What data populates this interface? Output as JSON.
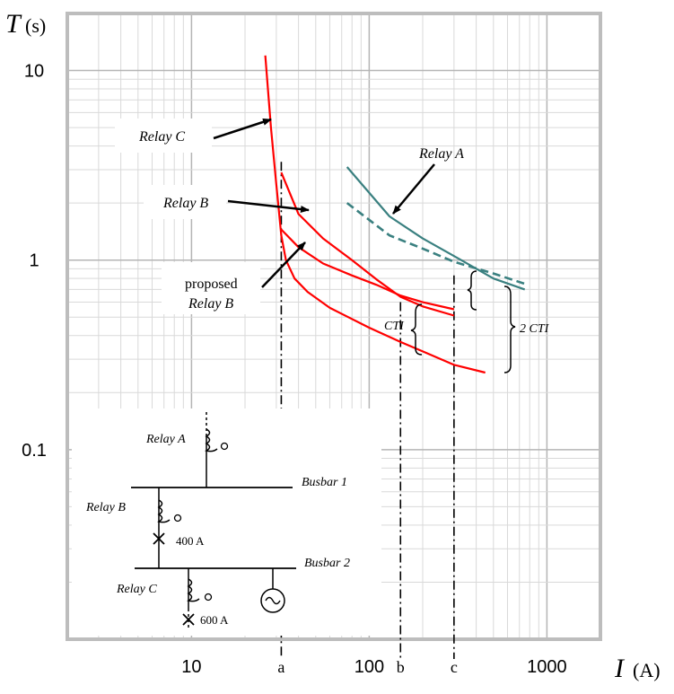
{
  "chart_data": {
    "type": "line",
    "scale": "log-log",
    "grid": true,
    "xlabel": {
      "symbol": "I",
      "unit": "(A)"
    },
    "ylabel": {
      "symbol": "T",
      "unit": "(s)"
    },
    "xlim": [
      2,
      2000
    ],
    "ylim": [
      0.01,
      20
    ],
    "x_ticks": [
      {
        "value": 10,
        "label": "10"
      },
      {
        "value": 100,
        "label": "100"
      },
      {
        "value": 1000,
        "label": "1000"
      }
    ],
    "y_ticks": [
      {
        "value": 10,
        "label": "10"
      },
      {
        "value": 1,
        "label": "1"
      },
      {
        "value": 0.1,
        "label": "0.1"
      }
    ],
    "markers": [
      {
        "label": "a",
        "x": 32,
        "y_top": 3.3
      },
      {
        "label": "b",
        "x": 150,
        "y_top": 0.6
      },
      {
        "label": "c",
        "x": 300,
        "y_top": 0.83
      }
    ],
    "series": [
      {
        "name": "Relay C",
        "color": "#ff0000",
        "style": "solid",
        "points": [
          [
            26,
            12
          ],
          [
            28,
            5
          ],
          [
            30,
            2.5
          ],
          [
            32,
            1.35
          ],
          [
            34,
            1.0
          ],
          [
            38,
            0.8
          ],
          [
            45,
            0.68
          ],
          [
            60,
            0.56
          ],
          [
            100,
            0.44
          ],
          [
            150,
            0.37
          ],
          [
            200,
            0.33
          ],
          [
            300,
            0.28
          ],
          [
            450,
            0.255
          ]
        ]
      },
      {
        "name": "Relay B",
        "color": "#ff0000",
        "style": "solid",
        "points": [
          [
            32,
            2.9
          ],
          [
            40,
            1.75
          ],
          [
            55,
            1.3
          ],
          [
            80,
            1.0
          ],
          [
            110,
            0.79
          ],
          [
            150,
            0.64
          ],
          [
            200,
            0.57
          ],
          [
            300,
            0.51
          ]
        ]
      },
      {
        "name": "proposed Relay B",
        "color": "#ff0000",
        "style": "solid",
        "points": [
          [
            32,
            1.45
          ],
          [
            40,
            1.17
          ],
          [
            55,
            0.96
          ],
          [
            80,
            0.83
          ],
          [
            110,
            0.74
          ],
          [
            150,
            0.65
          ],
          [
            200,
            0.6
          ],
          [
            300,
            0.55
          ]
        ]
      },
      {
        "name": "Relay A",
        "color": "#3a8080",
        "style": "solid",
        "points": [
          [
            75,
            3.1
          ],
          [
            130,
            1.7
          ],
          [
            200,
            1.3
          ],
          [
            300,
            1.05
          ],
          [
            500,
            0.8
          ],
          [
            750,
            0.7
          ]
        ]
      },
      {
        "color": "#3a8080",
        "style": "dashed",
        "points": [
          [
            75,
            2.0
          ],
          [
            130,
            1.35
          ],
          [
            200,
            1.15
          ],
          [
            300,
            0.98
          ],
          [
            500,
            0.85
          ],
          [
            750,
            0.75
          ]
        ]
      }
    ],
    "annotations": {
      "relay_c": "Relay C",
      "relay_b": "Relay B",
      "proposed_1": "proposed",
      "proposed_2": "Relay B",
      "relay_a": "Relay A",
      "cti": "CTI",
      "cti2": "2 CTI"
    },
    "inset": {
      "relay_a": "Relay A",
      "relay_b": "Relay B",
      "relay_c": "Relay C",
      "busbar1": "Busbar 1",
      "busbar2": "Busbar 2",
      "fault_b": "400 A",
      "fault_c": "600 A"
    }
  }
}
